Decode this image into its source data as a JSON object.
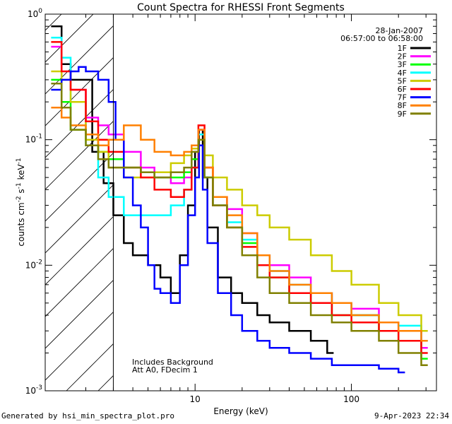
{
  "chart_data": {
    "type": "line",
    "title": "Count Spectra for RHESSI Front Segments",
    "xlabel": "Energy (keV)",
    "ylabel_parts": [
      "counts cm",
      "-2",
      " s",
      "-1",
      " keV",
      "-1"
    ],
    "x_scale": "log",
    "y_scale": "log",
    "xlim": [
      1.1,
      350
    ],
    "ylim": [
      0.001,
      1
    ],
    "x_tick_labels": [
      {
        "value": 10,
        "label": "10"
      },
      {
        "value": 100,
        "label": "100"
      }
    ],
    "y_tick_labels": [
      {
        "value": 1,
        "base": "10",
        "exp": "0"
      },
      {
        "value": 0.1,
        "base": "10",
        "exp": "-1"
      },
      {
        "value": 0.01,
        "base": "10",
        "exp": "-2"
      },
      {
        "value": 0.001,
        "base": "10",
        "exp": "-3"
      }
    ],
    "date": "28-Jan-2007",
    "time_range": "06:57:00 to 06:58:00",
    "hatched_region_upper_keV": 3,
    "annotations": [
      "Includes Background",
      "Att A0, FDecim 1"
    ],
    "series": [
      {
        "name": "1F",
        "color": "#000000",
        "points": [
          [
            1.2,
            0.8
          ],
          [
            1.4,
            0.4
          ],
          [
            1.6,
            0.3
          ],
          [
            1.8,
            0.3
          ],
          [
            2.2,
            0.08
          ],
          [
            2.6,
            0.045
          ],
          [
            3.0,
            0.025
          ],
          [
            3.5,
            0.015
          ],
          [
            4.0,
            0.012
          ],
          [
            5.0,
            0.01
          ],
          [
            6.0,
            0.008
          ],
          [
            7.0,
            0.006
          ],
          [
            8.0,
            0.012
          ],
          [
            9.0,
            0.03
          ],
          [
            10.0,
            0.08
          ],
          [
            10.6,
            0.12
          ],
          [
            11.2,
            0.05
          ],
          [
            12.0,
            0.02
          ],
          [
            14.0,
            0.008
          ],
          [
            17.0,
            0.006
          ],
          [
            20.0,
            0.005
          ],
          [
            25.0,
            0.004
          ],
          [
            30.0,
            0.0035
          ],
          [
            40.0,
            0.003
          ],
          [
            55.0,
            0.0025
          ],
          [
            70.0,
            0.002
          ]
        ]
      },
      {
        "name": "2F",
        "color": "#ff00ff",
        "points": [
          [
            1.2,
            0.55
          ],
          [
            1.4,
            0.3
          ],
          [
            1.6,
            0.25
          ],
          [
            2.0,
            0.15
          ],
          [
            2.4,
            0.13
          ],
          [
            2.8,
            0.11
          ],
          [
            3.5,
            0.08
          ],
          [
            4.5,
            0.06
          ],
          [
            5.5,
            0.05
          ],
          [
            7.0,
            0.045
          ],
          [
            8.5,
            0.05
          ],
          [
            9.5,
            0.07
          ],
          [
            10.5,
            0.12
          ],
          [
            11.5,
            0.06
          ],
          [
            13.0,
            0.035
          ],
          [
            16.0,
            0.028
          ],
          [
            20.0,
            0.018
          ],
          [
            25.0,
            0.012
          ],
          [
            30.0,
            0.01
          ],
          [
            40.0,
            0.008
          ],
          [
            55.0,
            0.006
          ],
          [
            75.0,
            0.005
          ],
          [
            100.0,
            0.0045
          ],
          [
            150.0,
            0.0035
          ],
          [
            200.0,
            0.003
          ],
          [
            280.0,
            0.0022
          ]
        ]
      },
      {
        "name": "3F",
        "color": "#00ff00",
        "points": [
          [
            1.2,
            0.3
          ],
          [
            1.4,
            0.2
          ],
          [
            1.6,
            0.12
          ],
          [
            2.0,
            0.1
          ],
          [
            2.4,
            0.08
          ],
          [
            2.8,
            0.07
          ],
          [
            3.5,
            0.06
          ],
          [
            4.5,
            0.055
          ],
          [
            5.5,
            0.05
          ],
          [
            7.0,
            0.05
          ],
          [
            8.5,
            0.055
          ],
          [
            9.5,
            0.07
          ],
          [
            10.5,
            0.11
          ],
          [
            11.5,
            0.05
          ],
          [
            13.0,
            0.03
          ],
          [
            16.0,
            0.02
          ],
          [
            20.0,
            0.015
          ],
          [
            25.0,
            0.01
          ],
          [
            30.0,
            0.008
          ],
          [
            40.0,
            0.006
          ],
          [
            55.0,
            0.005
          ],
          [
            75.0,
            0.004
          ],
          [
            100.0,
            0.004
          ],
          [
            150.0,
            0.003
          ],
          [
            200.0,
            0.0025
          ],
          [
            280.0,
            0.0018
          ]
        ]
      },
      {
        "name": "4F",
        "color": "#00ffff",
        "points": [
          [
            1.2,
            0.65
          ],
          [
            1.4,
            0.45
          ],
          [
            1.6,
            0.2
          ],
          [
            2.0,
            0.09
          ],
          [
            2.4,
            0.05
          ],
          [
            2.8,
            0.035
          ],
          [
            3.5,
            0.025
          ],
          [
            4.5,
            0.025
          ],
          [
            5.5,
            0.025
          ],
          [
            7.0,
            0.03
          ],
          [
            8.5,
            0.04
          ],
          [
            9.5,
            0.06
          ],
          [
            10.5,
            0.11
          ],
          [
            11.5,
            0.05
          ],
          [
            13.0,
            0.03
          ],
          [
            16.0,
            0.022
          ],
          [
            20.0,
            0.016
          ],
          [
            25.0,
            0.012
          ],
          [
            30.0,
            0.009
          ],
          [
            40.0,
            0.007
          ],
          [
            55.0,
            0.006
          ],
          [
            75.0,
            0.005
          ],
          [
            100.0,
            0.004
          ],
          [
            150.0,
            0.0035
          ],
          [
            200.0,
            0.0033
          ],
          [
            280.0,
            0.0025
          ]
        ]
      },
      {
        "name": "5F",
        "color": "#cccc00",
        "points": [
          [
            1.2,
            0.35
          ],
          [
            1.4,
            0.3
          ],
          [
            1.6,
            0.2
          ],
          [
            2.0,
            0.1
          ],
          [
            2.4,
            0.08
          ],
          [
            2.8,
            0.06
          ],
          [
            3.5,
            0.05
          ],
          [
            4.5,
            0.05
          ],
          [
            5.5,
            0.055
          ],
          [
            7.0,
            0.065
          ],
          [
            8.5,
            0.075
          ],
          [
            9.5,
            0.085
          ],
          [
            10.5,
            0.1
          ],
          [
            11.5,
            0.075
          ],
          [
            13.0,
            0.05
          ],
          [
            16.0,
            0.04
          ],
          [
            20.0,
            0.03
          ],
          [
            25.0,
            0.025
          ],
          [
            30.0,
            0.02
          ],
          [
            40.0,
            0.016
          ],
          [
            55.0,
            0.012
          ],
          [
            75.0,
            0.009
          ],
          [
            100.0,
            0.007
          ],
          [
            150.0,
            0.005
          ],
          [
            200.0,
            0.004
          ],
          [
            280.0,
            0.003
          ]
        ]
      },
      {
        "name": "6F",
        "color": "#ff0000",
        "points": [
          [
            1.2,
            0.6
          ],
          [
            1.4,
            0.35
          ],
          [
            1.6,
            0.25
          ],
          [
            2.0,
            0.14
          ],
          [
            2.4,
            0.1
          ],
          [
            2.8,
            0.08
          ],
          [
            3.5,
            0.06
          ],
          [
            4.5,
            0.05
          ],
          [
            5.5,
            0.04
          ],
          [
            7.0,
            0.035
          ],
          [
            8.5,
            0.04
          ],
          [
            9.5,
            0.06
          ],
          [
            10.5,
            0.13
          ],
          [
            11.5,
            0.06
          ],
          [
            13.0,
            0.03
          ],
          [
            16.0,
            0.02
          ],
          [
            20.0,
            0.014
          ],
          [
            25.0,
            0.01
          ],
          [
            30.0,
            0.008
          ],
          [
            40.0,
            0.006
          ],
          [
            55.0,
            0.005
          ],
          [
            75.0,
            0.004
          ],
          [
            100.0,
            0.0035
          ],
          [
            150.0,
            0.003
          ],
          [
            200.0,
            0.0025
          ],
          [
            280.0,
            0.002
          ]
        ]
      },
      {
        "name": "7F",
        "color": "#0000ff",
        "points": [
          [
            1.2,
            0.25
          ],
          [
            1.4,
            0.3
          ],
          [
            1.6,
            0.35
          ],
          [
            1.8,
            0.38
          ],
          [
            2.0,
            0.35
          ],
          [
            2.4,
            0.3
          ],
          [
            2.8,
            0.2
          ],
          [
            3.1,
            0.1
          ],
          [
            3.5,
            0.05
          ],
          [
            4.0,
            0.03
          ],
          [
            4.5,
            0.02
          ],
          [
            5.0,
            0.01
          ],
          [
            5.5,
            0.0065
          ],
          [
            6.0,
            0.006
          ],
          [
            7.0,
            0.005
          ],
          [
            8.0,
            0.01
          ],
          [
            9.0,
            0.025
          ],
          [
            10.0,
            0.05
          ],
          [
            10.6,
            0.09
          ],
          [
            11.2,
            0.04
          ],
          [
            12.0,
            0.015
          ],
          [
            14.0,
            0.006
          ],
          [
            17.0,
            0.004
          ],
          [
            20.0,
            0.003
          ],
          [
            25.0,
            0.0025
          ],
          [
            30.0,
            0.0022
          ],
          [
            40.0,
            0.002
          ],
          [
            55.0,
            0.0018
          ],
          [
            75.0,
            0.0016
          ],
          [
            100.0,
            0.0016
          ],
          [
            150.0,
            0.0015
          ],
          [
            200.0,
            0.0014
          ]
        ]
      },
      {
        "name": "8F",
        "color": "#ff8000",
        "points": [
          [
            1.2,
            0.18
          ],
          [
            1.4,
            0.15
          ],
          [
            1.6,
            0.13
          ],
          [
            2.0,
            0.11
          ],
          [
            2.4,
            0.09
          ],
          [
            2.8,
            0.1
          ],
          [
            3.5,
            0.13
          ],
          [
            4.5,
            0.1
          ],
          [
            5.5,
            0.08
          ],
          [
            7.0,
            0.075
          ],
          [
            8.5,
            0.08
          ],
          [
            9.5,
            0.09
          ],
          [
            10.5,
            0.12
          ],
          [
            11.5,
            0.06
          ],
          [
            13.0,
            0.035
          ],
          [
            16.0,
            0.025
          ],
          [
            20.0,
            0.018
          ],
          [
            25.0,
            0.012
          ],
          [
            30.0,
            0.009
          ],
          [
            40.0,
            0.007
          ],
          [
            55.0,
            0.006
          ],
          [
            75.0,
            0.005
          ],
          [
            100.0,
            0.004
          ],
          [
            150.0,
            0.0035
          ],
          [
            200.0,
            0.003
          ],
          [
            280.0,
            0.0025
          ]
        ]
      },
      {
        "name": "9F",
        "color": "#808000",
        "points": [
          [
            1.2,
            0.28
          ],
          [
            1.4,
            0.18
          ],
          [
            1.6,
            0.12
          ],
          [
            2.0,
            0.09
          ],
          [
            2.4,
            0.07
          ],
          [
            2.8,
            0.06
          ],
          [
            3.5,
            0.06
          ],
          [
            4.5,
            0.055
          ],
          [
            5.5,
            0.05
          ],
          [
            7.0,
            0.055
          ],
          [
            8.5,
            0.06
          ],
          [
            9.5,
            0.08
          ],
          [
            10.5,
            0.1
          ],
          [
            11.5,
            0.05
          ],
          [
            13.0,
            0.03
          ],
          [
            16.0,
            0.02
          ],
          [
            20.0,
            0.012
          ],
          [
            25.0,
            0.008
          ],
          [
            30.0,
            0.006
          ],
          [
            40.0,
            0.005
          ],
          [
            55.0,
            0.004
          ],
          [
            75.0,
            0.0035
          ],
          [
            100.0,
            0.003
          ],
          [
            150.0,
            0.0025
          ],
          [
            200.0,
            0.002
          ],
          [
            280.0,
            0.0016
          ]
        ]
      }
    ]
  },
  "footer": {
    "generated_by": "Generated by hsi_min_spectra_plot.pro",
    "timestamp": "9-Apr-2023 22:34"
  }
}
